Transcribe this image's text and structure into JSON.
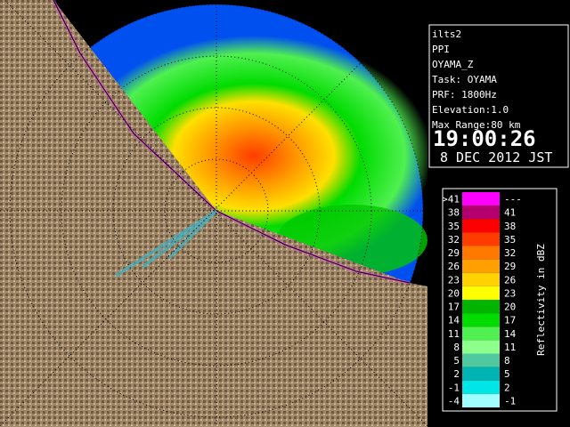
{
  "info": {
    "lines": [
      "ilts2",
      "PPI",
      "OYAMA_Z",
      "Task: OYAMA",
      "PRF: 1800Hz",
      "Elevation:1.0",
      "Max Range:80 km"
    ],
    "time": "19:00:26",
    "date": "8 DEC 2012 JST"
  },
  "colorbar": {
    "label": "Reflectivity in dBZ",
    "rows": [
      {
        "low": ">41",
        "high": "---",
        "color": "#ff00ff"
      },
      {
        "low": 38,
        "high": 41,
        "color": "#b4006e"
      },
      {
        "low": 35,
        "high": 38,
        "color": "#ff0000"
      },
      {
        "low": 32,
        "high": 35,
        "color": "#ff3c00"
      },
      {
        "low": 29,
        "high": 32,
        "color": "#ff7800"
      },
      {
        "low": 26,
        "high": 29,
        "color": "#ffa000"
      },
      {
        "low": 23,
        "high": 26,
        "color": "#ffd200"
      },
      {
        "low": 20,
        "high": 23,
        "color": "#ffff00"
      },
      {
        "low": 17,
        "high": 20,
        "color": "#00b400"
      },
      {
        "low": 14,
        "high": 17,
        "color": "#00dc00"
      },
      {
        "low": 11,
        "high": 14,
        "color": "#50f050"
      },
      {
        "low": 8,
        "high": 11,
        "color": "#8cff8c"
      },
      {
        "low": 5,
        "high": 8,
        "color": "#50c8a0"
      },
      {
        "low": 2,
        "high": 5,
        "color": "#00b4b4"
      },
      {
        "low": -1,
        "high": 2,
        "color": "#00e6e6"
      },
      {
        "low": -4,
        "high": -1,
        "color": "#a0ffff"
      }
    ]
  }
}
